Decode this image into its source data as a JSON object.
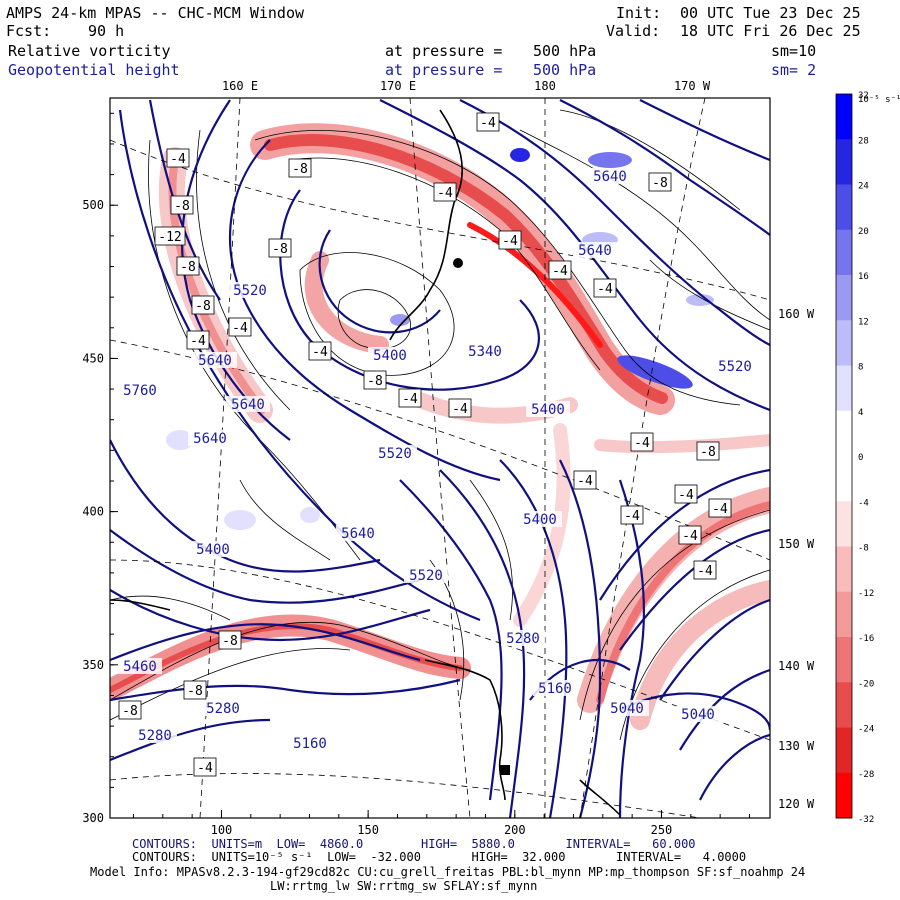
{
  "header": {
    "model_line": "AMPS 24-km MPAS -- CHC-MCM Window",
    "init_label": "Init:",
    "init_value": "00 UTC Tue 23 Dec 25",
    "fcst_label": "Fcst:",
    "fcst_value": "90 h",
    "valid_label": "Valid:",
    "valid_value": "18 UTC Fri 26 Dec 25",
    "field1_name": "Relative vorticity",
    "field1_level_label": "at pressure =",
    "field1_level_value": "500 hPa",
    "field1_smooth": "sm=10",
    "field2_name": "Geopotential height",
    "field2_level_label": "at pressure =",
    "field2_level_value": "500 hPa",
    "field2_smooth": "sm= 2"
  },
  "footer": {
    "contours1": "CONTOURS:  UNITS=m  LOW=  4860.0        HIGH=  5880.0       INTERVAL=   60.000",
    "contours2": "CONTOURS:  UNITS=10⁻⁵ s⁻¹  LOW=  -32.000       HIGH=  32.000       INTERVAL=   4.0000",
    "model_info": "Model Info: MPASv8.2.3-194-gf29cd82c CU:cu_grell_freitas PBL:bl_mynn MP:mp_thompson SF:sf_noahmp 24",
    "model_info2": "LW:rrtmg_lw SW:rrtmg_sw SFLAY:sf_mynn"
  },
  "colors": {
    "height_contour": "#101080",
    "vort_contour": "#000000",
    "land": "#000000",
    "negative_fill": [
      "#ffffff",
      "#fde2e2",
      "#f8bcbc",
      "#f39a9a",
      "#ee7575",
      "#e84d4d",
      "#e22626",
      "#ff0000"
    ],
    "positive_fill": [
      "#ffffff",
      "#e1e1ff",
      "#bcbcf8",
      "#9a9af3",
      "#7575ee",
      "#4d4de8",
      "#2626e2",
      "#0000ff"
    ]
  },
  "chart_data": {
    "type": "contour-map",
    "x_ticks": [
      "100",
      "150",
      "200",
      "250"
    ],
    "y_ticks": [
      "300",
      "350",
      "400",
      "450",
      "500"
    ],
    "xlim": [
      62,
      287
    ],
    "ylim": [
      300,
      535
    ],
    "top_lon_labels": [
      "160 E",
      "170 E",
      "180",
      "170 W"
    ],
    "right_lon_labels": [
      "160 W",
      "150 W",
      "140 W",
      "130 W",
      "120 W"
    ],
    "colorbar": {
      "unit": "10⁻⁵ s⁻¹",
      "tick_labels": [
        "32",
        "28",
        "24",
        "20",
        "16",
        "12",
        "8",
        "4",
        "0",
        "-4",
        "-8",
        "-12",
        "-16",
        "-20",
        "-24",
        "-28",
        "-32"
      ],
      "range": [
        -32,
        32
      ],
      "interval": 4
    },
    "height_contour_labels": [
      "5640",
      "5520",
      "5640",
      "5760",
      "5640",
      "5520",
      "5400",
      "5340",
      "5400",
      "5640",
      "5520",
      "5640",
      "5400",
      "5520",
      "5400",
      "5280",
      "5460",
      "5280",
      "5280",
      "5160",
      "5160",
      "5040",
      "5040",
      "5640"
    ],
    "vorticity_contour_labels": [
      "-4",
      "-8",
      "-8",
      "-12",
      "-8",
      "-8",
      "-4",
      "-4",
      "-8",
      "-4",
      "-4",
      "-8",
      "-4",
      "-8",
      "-4",
      "-4",
      "-4",
      "-4",
      "-4",
      "-4",
      "-8",
      "-4",
      "-4",
      "-4",
      "-4",
      "-4",
      "-4",
      "-8",
      "-8",
      "-8",
      "-4"
    ]
  }
}
